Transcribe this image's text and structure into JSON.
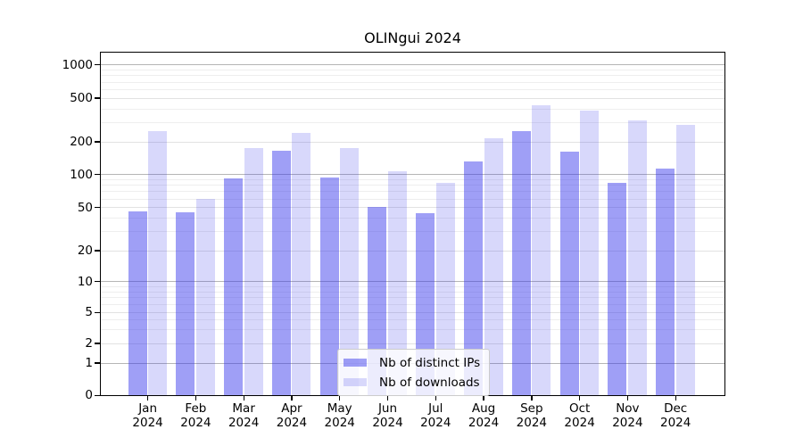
{
  "chart_data": {
    "type": "bar",
    "title": "OLINgui 2024",
    "categories": [
      "Jan",
      "Feb",
      "Mar",
      "Apr",
      "May",
      "Jun",
      "Jul",
      "Aug",
      "Sep",
      "Oct",
      "Nov",
      "Dec"
    ],
    "year_label": "2024",
    "series": [
      {
        "name": "Nb of distinct IPs",
        "color": "#3232eb78",
        "values": [
          46,
          45,
          91,
          165,
          93,
          50,
          44,
          132,
          250,
          160,
          83,
          112
        ]
      },
      {
        "name": "Nb of downloads",
        "color": "#3232eb30",
        "values": [
          250,
          60,
          175,
          240,
          175,
          107,
          84,
          216,
          430,
          385,
          310,
          285
        ]
      }
    ],
    "yticks": [
      0,
      1,
      2,
      5,
      10,
      20,
      50,
      100,
      200,
      500,
      1000
    ],
    "ylim": [
      0,
      1286
    ],
    "yscale": "log-like (log above 1, linear 0-1)",
    "xlabel": "",
    "ylabel": "",
    "grid": true,
    "legend_position": "lower center",
    "colors": {
      "axis": "#000000",
      "grid_major": "#b5b5b5",
      "grid_labeled": "#e2e2e2",
      "grid_minor": "#eeeeee",
      "legend_border": "#cccccc"
    }
  }
}
